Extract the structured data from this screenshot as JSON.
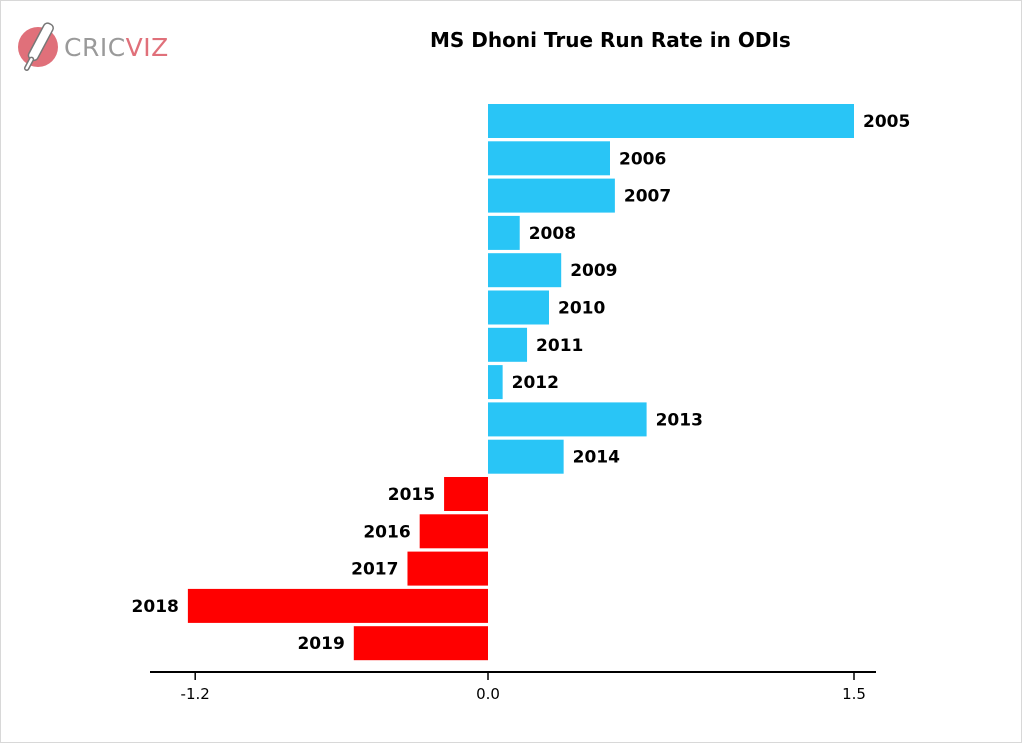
{
  "logo": {
    "text_main": "CRIC",
    "text_accent": "VIZ",
    "icon": "cricket-bat-ball-icon",
    "brand_color": "#e0707a"
  },
  "chart_data": {
    "type": "bar",
    "orientation": "horizontal",
    "title": "MS Dhoni True Run Rate in ODIs",
    "xlabel": "",
    "ylabel": "",
    "xlim": [
      -1.4,
      1.6
    ],
    "x_ticks": [
      {
        "value": -1.2,
        "label": "-1.2"
      },
      {
        "value": 0.0,
        "label": "0.0"
      },
      {
        "value": 1.5,
        "label": "1.5"
      }
    ],
    "categories": [
      "2005",
      "2006",
      "2007",
      "2008",
      "2009",
      "2010",
      "2011",
      "2012",
      "2013",
      "2014",
      "2015",
      "2016",
      "2017",
      "2018",
      "2019"
    ],
    "values": [
      1.5,
      0.5,
      0.52,
      0.13,
      0.3,
      0.25,
      0.16,
      0.06,
      0.65,
      0.31,
      -0.18,
      -0.28,
      -0.33,
      -1.23,
      -0.55
    ],
    "positive_color": "#29c5f6",
    "negative_color": "#ff0000",
    "grid": false,
    "legend": "none"
  }
}
